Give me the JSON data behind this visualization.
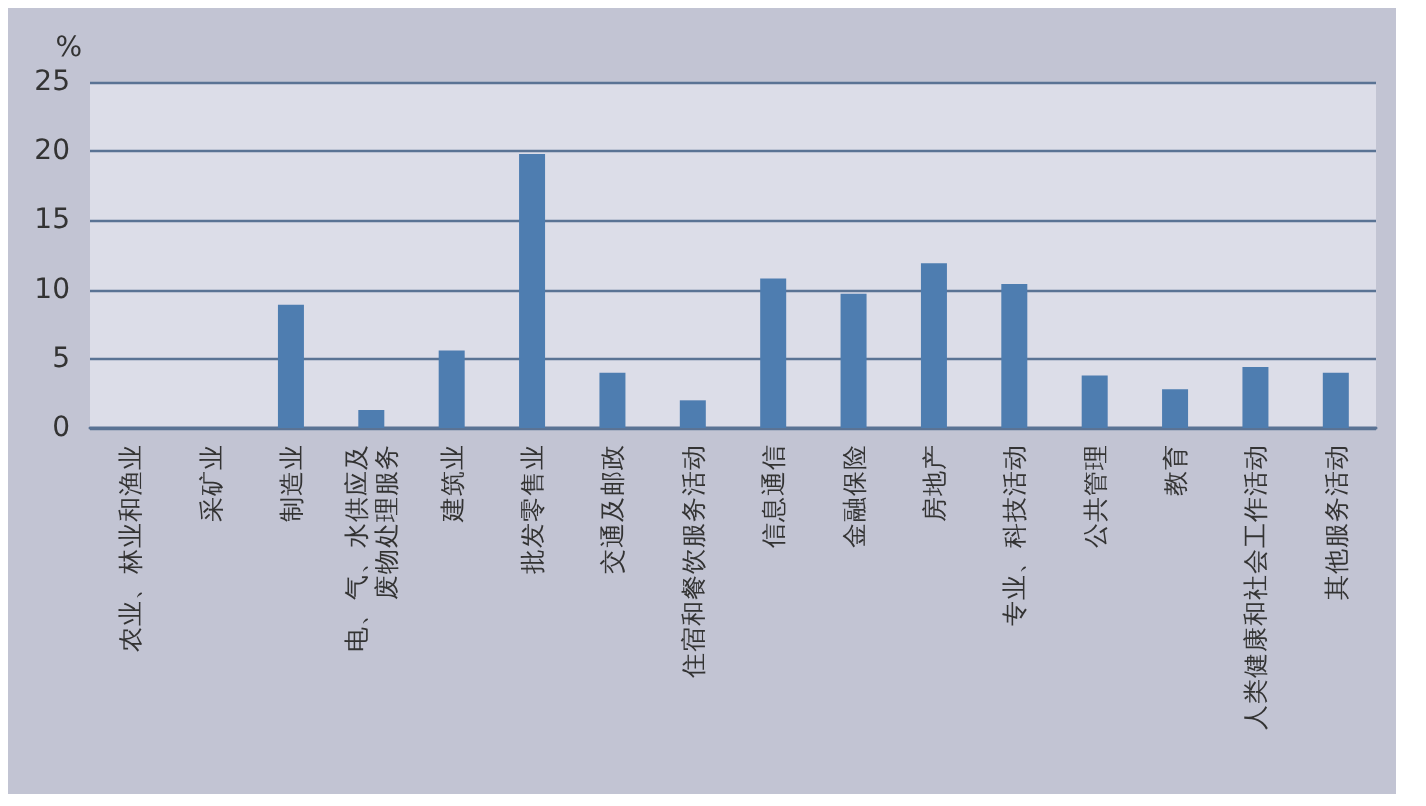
{
  "chart_data": {
    "type": "bar",
    "ylabel": "%",
    "categories": [
      "农业、林业和渔业",
      "采矿业",
      "制造业",
      "电、气、水供应及废物处理服务",
      "建筑业",
      "批发零售业",
      "交通及邮政",
      "住宿和餐饮服务活动",
      "信息通信",
      "金融保险",
      "房地产",
      "专业、科技活动",
      "公共管理",
      "教育",
      "人类健康和社会工作活动",
      "其他服务活动"
    ],
    "values": [
      0,
      0,
      8.9,
      1.3,
      5.6,
      19.8,
      4.0,
      2.0,
      10.8,
      9.7,
      11.9,
      10.4,
      3.8,
      2.8,
      4.4,
      4.0
    ],
    "color": "#4e7db0",
    "ylim": [
      0,
      25
    ],
    "yticks": [
      0,
      5,
      10,
      15,
      20,
      25
    ],
    "grid": "y"
  }
}
